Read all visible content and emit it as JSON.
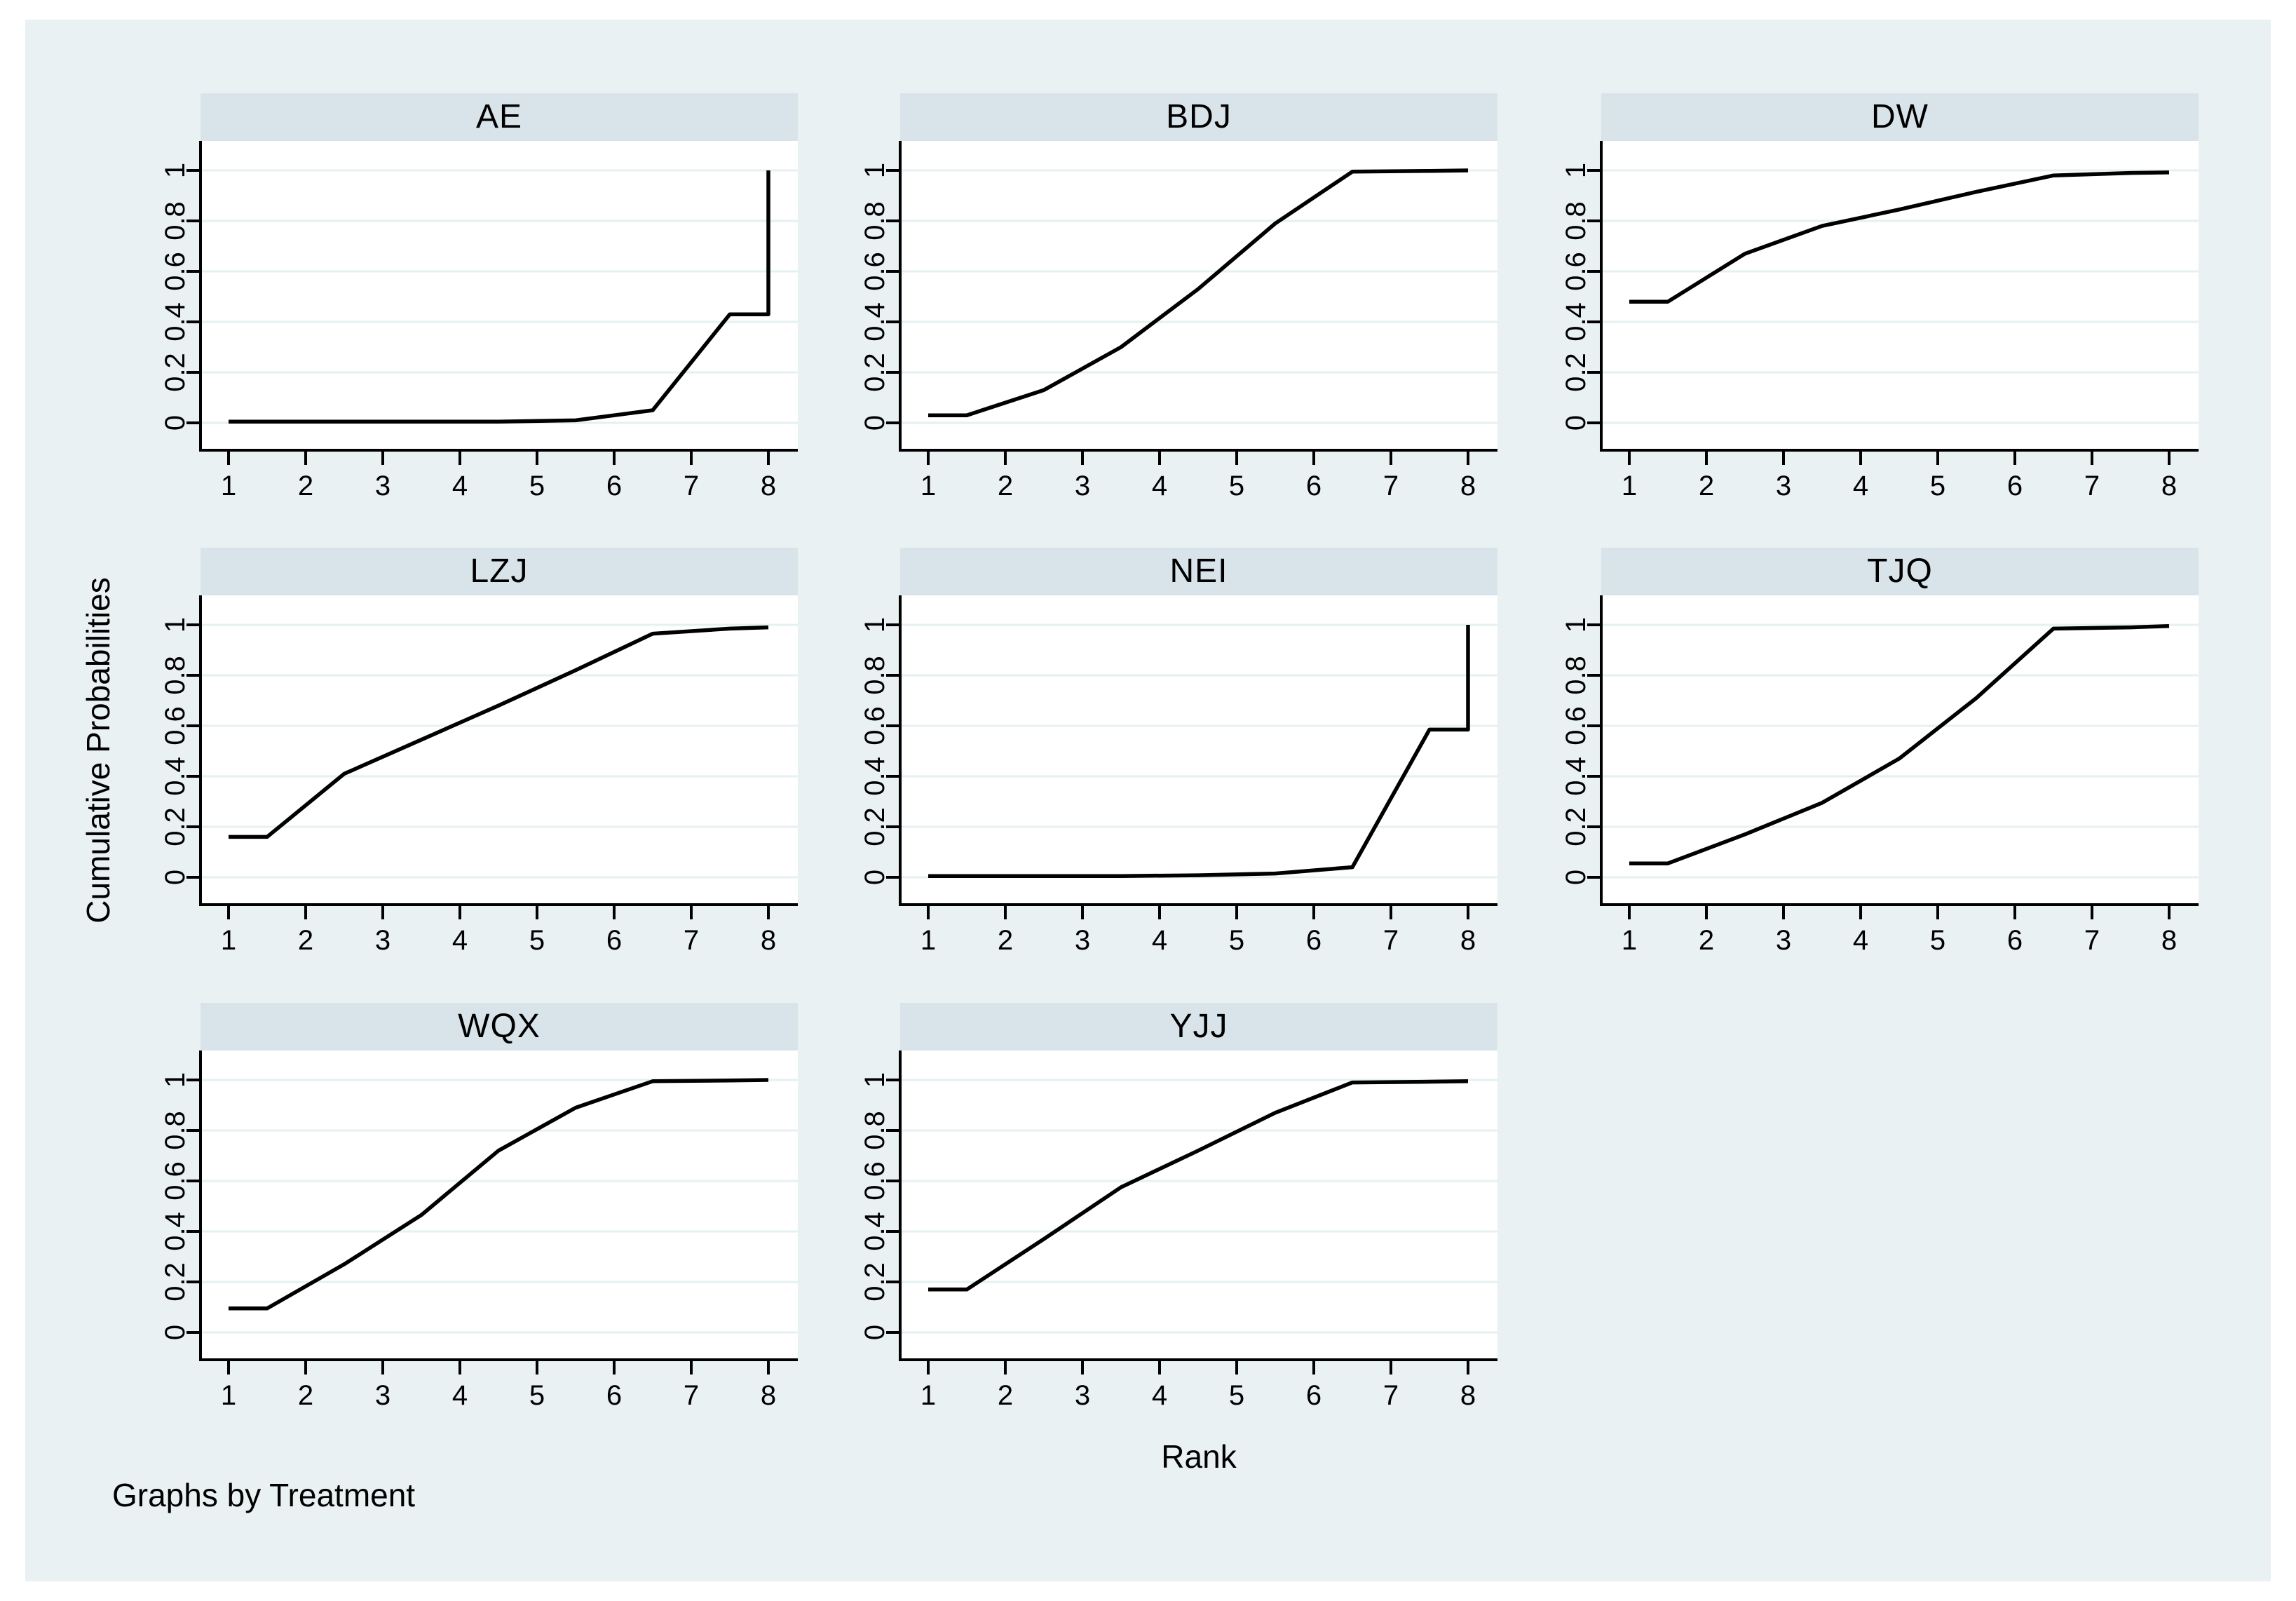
{
  "figure": {
    "y_axis_title": "Cumulative Probabilities",
    "x_axis_title": "Rank",
    "note": "Graphs by Treatment"
  },
  "colors": {
    "page_background": "#ffffff",
    "canvas_background": "#EAF1F3",
    "panel_title_background": "#D9E4EA",
    "plot_background": "#ffffff",
    "gridline": "#E6F0F2",
    "line": "#000000",
    "axis": "#000000",
    "text": "#000000"
  },
  "axes": {
    "x_ticks": [
      "1",
      "2",
      "3",
      "4",
      "5",
      "6",
      "7",
      "8"
    ],
    "x_tick_values": [
      1,
      2,
      3,
      4,
      5,
      6,
      7,
      8
    ],
    "y_ticks": [
      "0",
      "0.2",
      "0.4",
      "0.6",
      "0.8",
      "1"
    ],
    "y_tick_values": [
      0,
      0.2,
      0.4,
      0.6,
      0.8,
      1
    ],
    "xlim": [
      1,
      8
    ],
    "ylim": [
      0,
      1
    ],
    "grid": true
  },
  "chart_data": [
    {
      "type": "line",
      "title": "AE",
      "row": 0,
      "col": 0,
      "x": [
        1,
        1.5,
        2.5,
        3.5,
        4.5,
        5.5,
        6.5,
        7.5,
        8,
        8
      ],
      "y": [
        0.005,
        0.005,
        0.005,
        0.005,
        0.005,
        0.01,
        0.05,
        0.43,
        0.43,
        1.0
      ]
    },
    {
      "type": "line",
      "title": "BDJ",
      "row": 0,
      "col": 1,
      "x": [
        1,
        1.5,
        2.5,
        3.5,
        4.5,
        5.5,
        6.5,
        7.5,
        8
      ],
      "y": [
        0.03,
        0.03,
        0.13,
        0.3,
        0.53,
        0.79,
        0.995,
        0.998,
        1.0
      ]
    },
    {
      "type": "line",
      "title": "DW",
      "row": 0,
      "col": 2,
      "x": [
        1,
        1.5,
        2.5,
        3.5,
        4.5,
        5.5,
        6.5,
        7.5,
        8
      ],
      "y": [
        0.48,
        0.48,
        0.67,
        0.78,
        0.845,
        0.915,
        0.98,
        0.99,
        0.992
      ]
    },
    {
      "type": "line",
      "title": "LZJ",
      "row": 1,
      "col": 0,
      "x": [
        1,
        1.5,
        2.5,
        3.5,
        4.5,
        5.5,
        6.5,
        7.5,
        8
      ],
      "y": [
        0.16,
        0.16,
        0.41,
        0.545,
        0.68,
        0.82,
        0.965,
        0.985,
        0.99
      ]
    },
    {
      "type": "line",
      "title": "NEI",
      "row": 1,
      "col": 1,
      "x": [
        1,
        1.5,
        2.5,
        3.5,
        4.5,
        5.5,
        6.5,
        7.5,
        8,
        8
      ],
      "y": [
        0.005,
        0.005,
        0.005,
        0.005,
        0.008,
        0.015,
        0.04,
        0.585,
        0.585,
        1.0
      ]
    },
    {
      "type": "line",
      "title": "TJQ",
      "row": 1,
      "col": 2,
      "x": [
        1,
        1.5,
        2.5,
        3.5,
        4.5,
        5.5,
        6.5,
        7.5,
        8
      ],
      "y": [
        0.055,
        0.055,
        0.17,
        0.295,
        0.47,
        0.71,
        0.985,
        0.99,
        0.995
      ]
    },
    {
      "type": "line",
      "title": "WQX",
      "row": 2,
      "col": 0,
      "x": [
        1,
        1.5,
        2.5,
        3.5,
        4.5,
        5.5,
        6.5,
        7.5,
        8
      ],
      "y": [
        0.095,
        0.095,
        0.27,
        0.465,
        0.72,
        0.89,
        0.995,
        0.998,
        1.0
      ]
    },
    {
      "type": "line",
      "title": "YJJ",
      "row": 2,
      "col": 1,
      "x": [
        1,
        1.5,
        2.5,
        3.5,
        4.5,
        5.5,
        6.5,
        7.5,
        8
      ],
      "y": [
        0.17,
        0.17,
        0.37,
        0.575,
        0.72,
        0.87,
        0.99,
        0.993,
        0.995
      ]
    }
  ]
}
